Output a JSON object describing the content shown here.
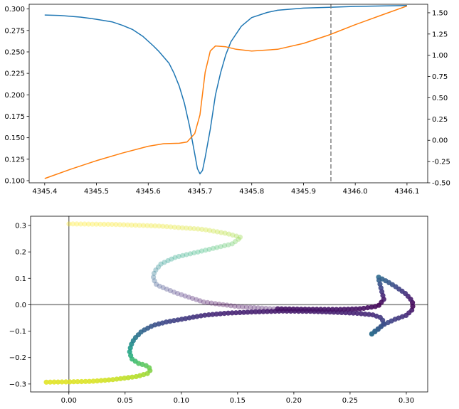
{
  "chart_data": [
    {
      "type": "line",
      "xlim": [
        4345.37,
        4346.14
      ],
      "ylim_left": [
        0.0975,
        0.3055
      ],
      "ylim_right": [
        -0.5,
        1.6
      ],
      "x_ticks": [
        "4345.4",
        "4345.5",
        "4345.6",
        "4345.7",
        "4345.8",
        "4345.9",
        "4346.0",
        "4346.1"
      ],
      "y_ticks_left": [
        "0.100",
        "0.125",
        "0.150",
        "0.175",
        "0.200",
        "0.225",
        "0.250",
        "0.275",
        "0.300"
      ],
      "y_ticks_right": [
        "-0.50",
        "-0.25",
        "0.00",
        "0.25",
        "0.50",
        "0.75",
        "1.00",
        "1.25",
        "1.50"
      ],
      "vline": {
        "x": 4345.953,
        "style": "dashed",
        "color": "#808080"
      },
      "grid": false,
      "series": [
        {
          "axis": "left",
          "color": "#1f77b4",
          "points": [
            [
              4345.4,
              0.293
            ],
            [
              4345.43,
              0.2925
            ],
            [
              4345.47,
              0.2905
            ],
            [
              4345.5,
              0.288
            ],
            [
              4345.53,
              0.285
            ],
            [
              4345.55,
              0.281
            ],
            [
              4345.57,
              0.276
            ],
            [
              4345.59,
              0.268
            ],
            [
              4345.61,
              0.257
            ],
            [
              4345.62,
              0.251
            ],
            [
              4345.64,
              0.237
            ],
            [
              4345.65,
              0.225
            ],
            [
              4345.66,
              0.21
            ],
            [
              4345.67,
              0.19
            ],
            [
              4345.68,
              0.163
            ],
            [
              4345.69,
              0.131
            ],
            [
              4345.695,
              0.114
            ],
            [
              4345.7,
              0.108
            ],
            [
              4345.705,
              0.112
            ],
            [
              4345.71,
              0.127
            ],
            [
              4345.72,
              0.16
            ],
            [
              4345.73,
              0.2
            ],
            [
              4345.74,
              0.226
            ],
            [
              4345.75,
              0.247
            ],
            [
              4345.76,
              0.262
            ],
            [
              4345.78,
              0.28
            ],
            [
              4345.8,
              0.29
            ],
            [
              4345.83,
              0.296
            ],
            [
              4345.85,
              0.2985
            ],
            [
              4345.9,
              0.301
            ],
            [
              4345.95,
              0.302
            ],
            [
              4346.0,
              0.303
            ],
            [
              4346.05,
              0.3035
            ],
            [
              4346.1,
              0.304
            ]
          ]
        },
        {
          "axis": "right",
          "color": "#ff7f0e",
          "points": [
            [
              4345.4,
              -0.45
            ],
            [
              4345.45,
              -0.34
            ],
            [
              4345.5,
              -0.24
            ],
            [
              4345.55,
              -0.15
            ],
            [
              4345.6,
              -0.07
            ],
            [
              4345.63,
              -0.04
            ],
            [
              4345.66,
              -0.035
            ],
            [
              4345.675,
              -0.02
            ],
            [
              4345.69,
              0.08
            ],
            [
              4345.7,
              0.3
            ],
            [
              4345.71,
              0.8
            ],
            [
              4345.72,
              1.05
            ],
            [
              4345.73,
              1.11
            ],
            [
              4345.75,
              1.1
            ],
            [
              4345.77,
              1.07
            ],
            [
              4345.8,
              1.05
            ],
            [
              4345.85,
              1.07
            ],
            [
              4345.9,
              1.14
            ],
            [
              4345.95,
              1.24
            ],
            [
              4346.0,
              1.36
            ],
            [
              4346.05,
              1.47
            ],
            [
              4346.1,
              1.58
            ]
          ]
        }
      ]
    },
    {
      "type": "scatter",
      "xlim": [
        -0.034,
        0.319
      ],
      "ylim": [
        -0.33,
        0.335
      ],
      "x_ticks": [
        "0.00",
        "0.05",
        "0.10",
        "0.15",
        "0.20",
        "0.25",
        "0.30"
      ],
      "y_ticks": [
        "−0.3",
        "−0.2",
        "−0.1",
        "0.0",
        "0.1",
        "0.2",
        "0.3"
      ],
      "reference_lines": {
        "x": 0.0,
        "y": 0.0,
        "color": "#808080"
      },
      "colormap": "viridis",
      "grid": false,
      "path_points": [
        [
          -0.02,
          -0.293
        ],
        [
          0.0,
          -0.292
        ],
        [
          0.02,
          -0.29
        ],
        [
          0.04,
          -0.283
        ],
        [
          0.06,
          -0.272
        ],
        [
          0.07,
          -0.26
        ],
        [
          0.073,
          -0.245
        ],
        [
          0.07,
          -0.232
        ],
        [
          0.062,
          -0.222
        ],
        [
          0.056,
          -0.205
        ],
        [
          0.054,
          -0.18
        ],
        [
          0.055,
          -0.155
        ],
        [
          0.058,
          -0.13
        ],
        [
          0.065,
          -0.1
        ],
        [
          0.075,
          -0.078
        ],
        [
          0.087,
          -0.065
        ],
        [
          0.1,
          -0.055
        ],
        [
          0.12,
          -0.04
        ],
        [
          0.14,
          -0.032
        ],
        [
          0.165,
          -0.027
        ],
        [
          0.19,
          -0.024
        ],
        [
          0.215,
          -0.025
        ],
        [
          0.235,
          -0.028
        ],
        [
          0.255,
          -0.032
        ],
        [
          0.27,
          -0.038
        ],
        [
          0.278,
          -0.05
        ],
        [
          0.28,
          -0.07
        ],
        [
          0.276,
          -0.09
        ],
        [
          0.268,
          -0.115
        ],
        [
          0.272,
          -0.1
        ],
        [
          0.28,
          -0.075
        ],
        [
          0.29,
          -0.055
        ],
        [
          0.3,
          -0.04
        ],
        [
          0.305,
          -0.02
        ],
        [
          0.306,
          0.0
        ],
        [
          0.305,
          0.015
        ],
        [
          0.3,
          0.04
        ],
        [
          0.29,
          0.07
        ],
        [
          0.282,
          0.09
        ],
        [
          0.275,
          0.105
        ],
        [
          0.28,
          0.02
        ],
        [
          0.275,
          -0.005
        ],
        [
          0.26,
          -0.015
        ],
        [
          0.24,
          -0.018
        ],
        [
          0.21,
          -0.017
        ],
        [
          0.18,
          -0.015
        ],
        [
          0.15,
          -0.007
        ],
        [
          0.12,
          0.01
        ],
        [
          0.095,
          0.045
        ],
        [
          0.078,
          0.075
        ],
        [
          0.075,
          0.1
        ],
        [
          0.076,
          0.125
        ],
        [
          0.082,
          0.155
        ],
        [
          0.095,
          0.18
        ],
        [
          0.12,
          0.205
        ],
        [
          0.145,
          0.23
        ],
        [
          0.153,
          0.255
        ],
        [
          0.14,
          0.27
        ],
        [
          0.12,
          0.285
        ],
        [
          0.08,
          0.298
        ],
        [
          0.04,
          0.304
        ],
        [
          0.0,
          0.306
        ]
      ]
    }
  ]
}
